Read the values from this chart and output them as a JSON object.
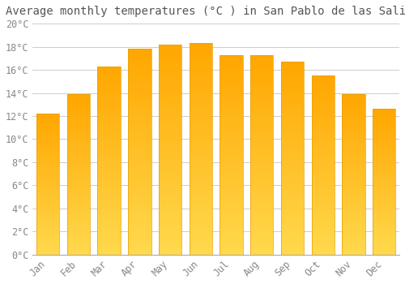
{
  "title": "Average monthly temperatures (°C ) in San Pablo de las Salinas",
  "months": [
    "Jan",
    "Feb",
    "Mar",
    "Apr",
    "May",
    "Jun",
    "Jul",
    "Aug",
    "Sep",
    "Oct",
    "Nov",
    "Dec"
  ],
  "temperatures": [
    12.2,
    13.9,
    16.3,
    17.8,
    18.2,
    18.3,
    17.3,
    17.3,
    16.7,
    15.5,
    13.9,
    12.6
  ],
  "bar_color_bottom": "#FFD966",
  "bar_color_top": "#FFA500",
  "bar_edge_color": "#E8A000",
  "background_color": "#FFFFFF",
  "grid_color": "#CCCCCC",
  "ylim": [
    0,
    20
  ],
  "ytick_step": 2,
  "title_fontsize": 10,
  "tick_fontsize": 8.5,
  "tick_color": "#888888",
  "title_color": "#555555",
  "bar_width": 0.75
}
